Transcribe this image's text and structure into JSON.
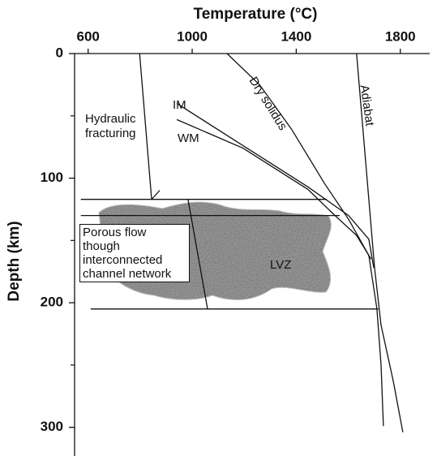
{
  "chart_data": {
    "type": "line",
    "title": "Temperature (°C)",
    "y_label": "Depth (km)",
    "xlim": [
      548,
      1913
    ],
    "ylim": [
      0,
      323
    ],
    "y_inverted": true,
    "x_axis_position": "top",
    "xticks": [
      600,
      1000,
      1400,
      1800
    ],
    "yticks": [
      0,
      100,
      200,
      300
    ],
    "yminorticks": [
      50,
      150,
      250
    ],
    "series": [
      {
        "name": "Dry solidus",
        "color": "#111111",
        "x": [
          1134,
          1259,
          1383,
          1508,
          1601,
          1679,
          1710,
          1726,
          1735
        ],
        "values": [
          0,
          25,
          61,
          104,
          133,
          162,
          205,
          250,
          299
        ]
      },
      {
        "name": "Adiabat",
        "color": "#111111",
        "x": [
          1632,
          1701,
          1726,
          1773,
          1810
        ],
        "values": [
          0,
          172,
          218,
          263,
          304
        ]
      },
      {
        "name": "IM",
        "color": "#111111",
        "x": [
          941,
          1196,
          1445,
          1601,
          1679,
          1698
        ],
        "values": [
          40,
          74,
          107,
          130,
          149,
          172
        ]
      },
      {
        "name": "WM",
        "color": "#111111",
        "x": [
          941,
          1196,
          1445,
          1539,
          1632,
          1688
        ],
        "values": [
          53,
          76,
          109,
          128,
          146,
          165
        ]
      },
      {
        "name": "Hydraulic fracturing",
        "color": "#111111",
        "x": [
          798,
          844
        ],
        "values": [
          0,
          117
        ]
      },
      {
        "color": "#111111",
        "x": [
          572,
          1517
        ],
        "values": [
          117,
          117
        ]
      },
      {
        "color": "#111111",
        "x": [
          572,
          1567
        ],
        "values": [
          130,
          130
        ]
      },
      {
        "color": "#111111",
        "x": [
          610,
          1716
        ],
        "values": [
          205,
          205
        ]
      },
      {
        "color": "#111111",
        "x": [
          984,
          1059
        ],
        "values": [
          117,
          205
        ]
      }
    ],
    "annotations": [
      "LVZ",
      "Porous flow though interconnected channel network"
    ]
  }
}
